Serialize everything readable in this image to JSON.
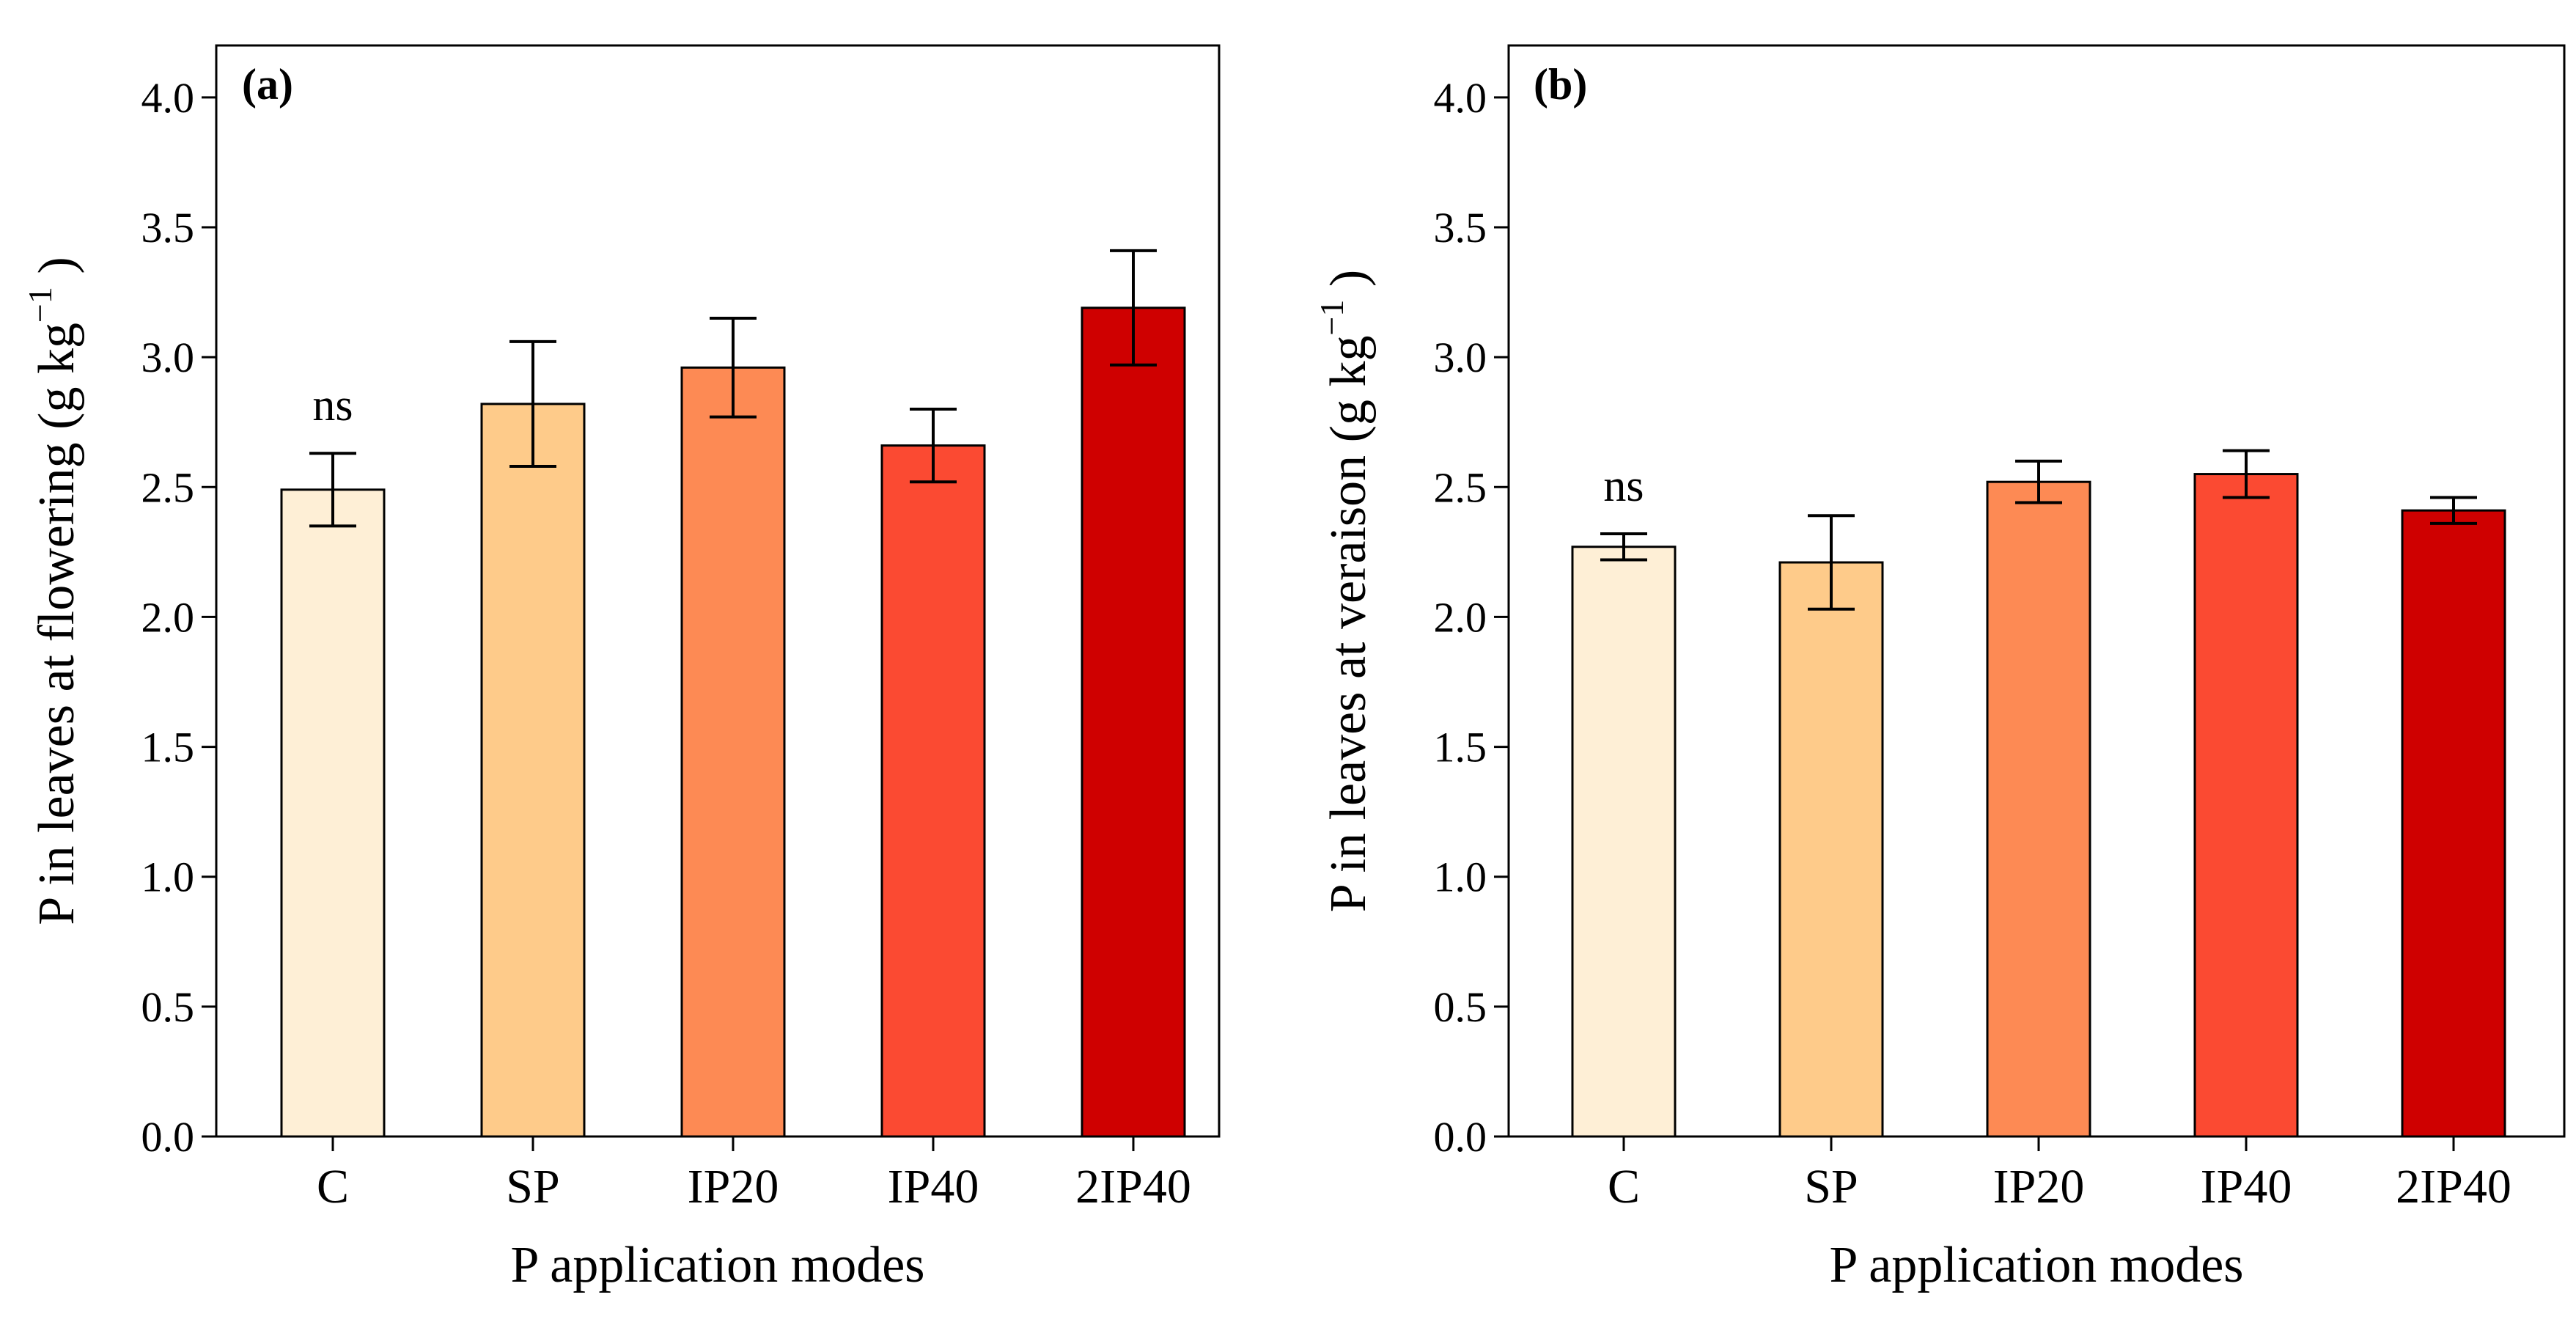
{
  "chart_data": [
    {
      "type": "bar",
      "panel_label": "(a)",
      "categories": [
        "C",
        "SP",
        "IP20",
        "IP40",
        "2IP40"
      ],
      "values": [
        2.49,
        2.82,
        2.96,
        2.66,
        3.19
      ],
      "errors": [
        0.14,
        0.24,
        0.19,
        0.14,
        0.22
      ],
      "annotations": [
        {
          "category": "C",
          "text": "ns"
        }
      ],
      "xlabel": "P application modes",
      "ylabel": "P in leaves at flowering (g kg",
      "ylabel_sup": "−1",
      "ylabel_close": " )",
      "ylim": [
        0,
        4.2
      ],
      "yticks": [
        "0.0",
        "0.5",
        "1.0",
        "1.5",
        "2.0",
        "2.5",
        "3.0",
        "3.5",
        "4.0"
      ],
      "grid": false,
      "colors": [
        "#FEEFD6",
        "#FECB8A",
        "#FD8A54",
        "#FB4A32",
        "#CF0000"
      ]
    },
    {
      "type": "bar",
      "panel_label": "(b)",
      "categories": [
        "C",
        "SP",
        "IP20",
        "IP40",
        "2IP40"
      ],
      "values": [
        2.27,
        2.21,
        2.52,
        2.55,
        2.41
      ],
      "errors": [
        0.05,
        0.18,
        0.08,
        0.09,
        0.05
      ],
      "annotations": [
        {
          "category": "C",
          "text": "ns"
        }
      ],
      "xlabel": "P application modes",
      "ylabel": "P in leaves at veraison (g kg",
      "ylabel_sup": "−1",
      "ylabel_close": " )",
      "ylim": [
        0,
        4.2
      ],
      "yticks": [
        "0.0",
        "0.5",
        "1.0",
        "1.5",
        "2.0",
        "2.5",
        "3.0",
        "3.5",
        "4.0"
      ],
      "grid": false,
      "colors": [
        "#FEEFD6",
        "#FECB8A",
        "#FD8A54",
        "#FB4A32",
        "#CF0000"
      ]
    }
  ]
}
